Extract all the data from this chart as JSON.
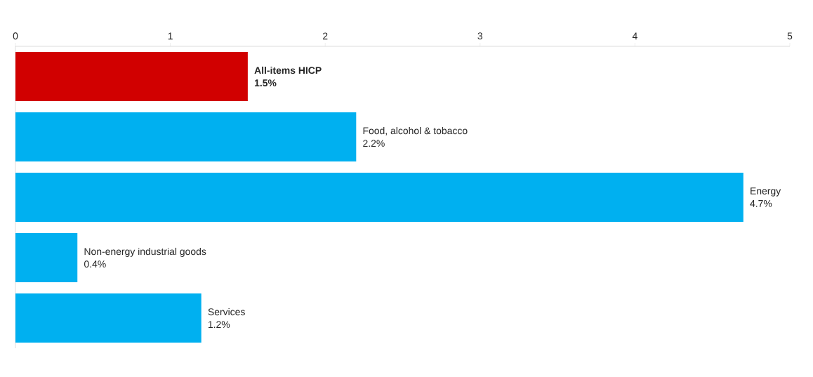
{
  "chart_data": {
    "type": "bar",
    "orientation": "horizontal",
    "categories": [
      "All-items HICP",
      "Food, alcohol & tobacco",
      "Energy",
      "Non-energy industrial goods",
      "Services"
    ],
    "values": [
      1.5,
      2.2,
      4.7,
      0.4,
      1.2
    ],
    "value_labels": [
      "1.5%",
      "2.2%",
      "4.7%",
      "0.4%",
      "1.2%"
    ],
    "colors": [
      "#d10000",
      "#00b0f0",
      "#00b0f0",
      "#00b0f0",
      "#00b0f0"
    ],
    "xlim": [
      0,
      5
    ],
    "xticks": [
      0,
      1,
      2,
      3,
      4,
      5
    ],
    "tick_labels": "x"
  }
}
